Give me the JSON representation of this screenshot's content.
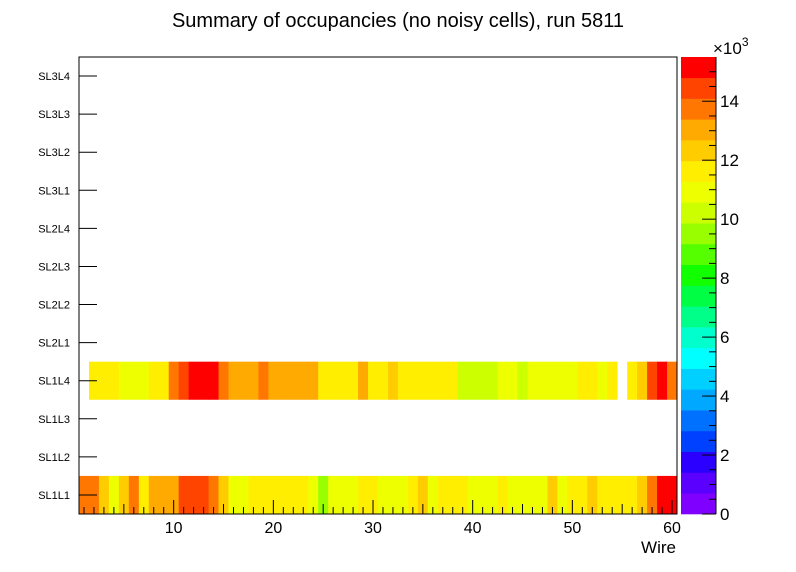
{
  "chart_data": {
    "type": "heatmap",
    "title": "Summary of occupancies (no noisy cells), run 5811",
    "xlabel": "Wire",
    "ylabel": "",
    "xlim": [
      0.5,
      60.5
    ],
    "x_ticks": [
      10,
      20,
      30,
      40,
      50,
      60
    ],
    "y_categories": [
      "SL1L1",
      "SL1L2",
      "SL1L3",
      "SL1L4",
      "SL2L1",
      "SL2L2",
      "SL2L3",
      "SL2L4",
      "SL3L1",
      "SL3L2",
      "SL3L3",
      "SL3L4"
    ],
    "z_range": [
      0,
      15500
    ],
    "colorbar_ticks": [
      0,
      2,
      4,
      6,
      8,
      10,
      12,
      14
    ],
    "colorbar_multiplier": "×10",
    "colorbar_exponent": "3",
    "rows": [
      {
        "layer": "SL1L1",
        "values": [
          13400,
          13800,
          12200,
          11000,
          12200,
          13400,
          11500,
          13200,
          13200,
          13200,
          14200,
          14200,
          14200,
          13400,
          12200,
          10800,
          10800,
          11700,
          11700,
          11700,
          11700,
          11700,
          11700,
          11200,
          9800,
          11200,
          10800,
          10800,
          11700,
          11700,
          11200,
          11200,
          11200,
          11700,
          12200,
          11200,
          11700,
          11700,
          11700,
          11200,
          11200,
          11200,
          11700,
          11200,
          10800,
          10800,
          11200,
          12200,
          11200,
          11700,
          11700,
          12200,
          11700,
          11700,
          11700,
          11700,
          12200,
          13400,
          14800,
          14800
        ]
      },
      {
        "layer": "SL1L4",
        "values": [
          null,
          11700,
          11700,
          11700,
          11000,
          11000,
          11000,
          11700,
          11700,
          13400,
          14200,
          14800,
          14800,
          15300,
          13900,
          13000,
          13000,
          13000,
          13800,
          13000,
          13000,
          13000,
          13000,
          13000,
          11700,
          11700,
          11700,
          11700,
          13000,
          11700,
          11700,
          12200,
          11700,
          11700,
          11700,
          11700,
          11700,
          11700,
          10000,
          10000,
          10000,
          10000,
          11000,
          11000,
          10000,
          11000,
          11000,
          11000,
          11000,
          11000,
          11700,
          11700,
          11000,
          11700,
          null,
          11700,
          12500,
          14500,
          15200,
          13800
        ]
      }
    ]
  }
}
